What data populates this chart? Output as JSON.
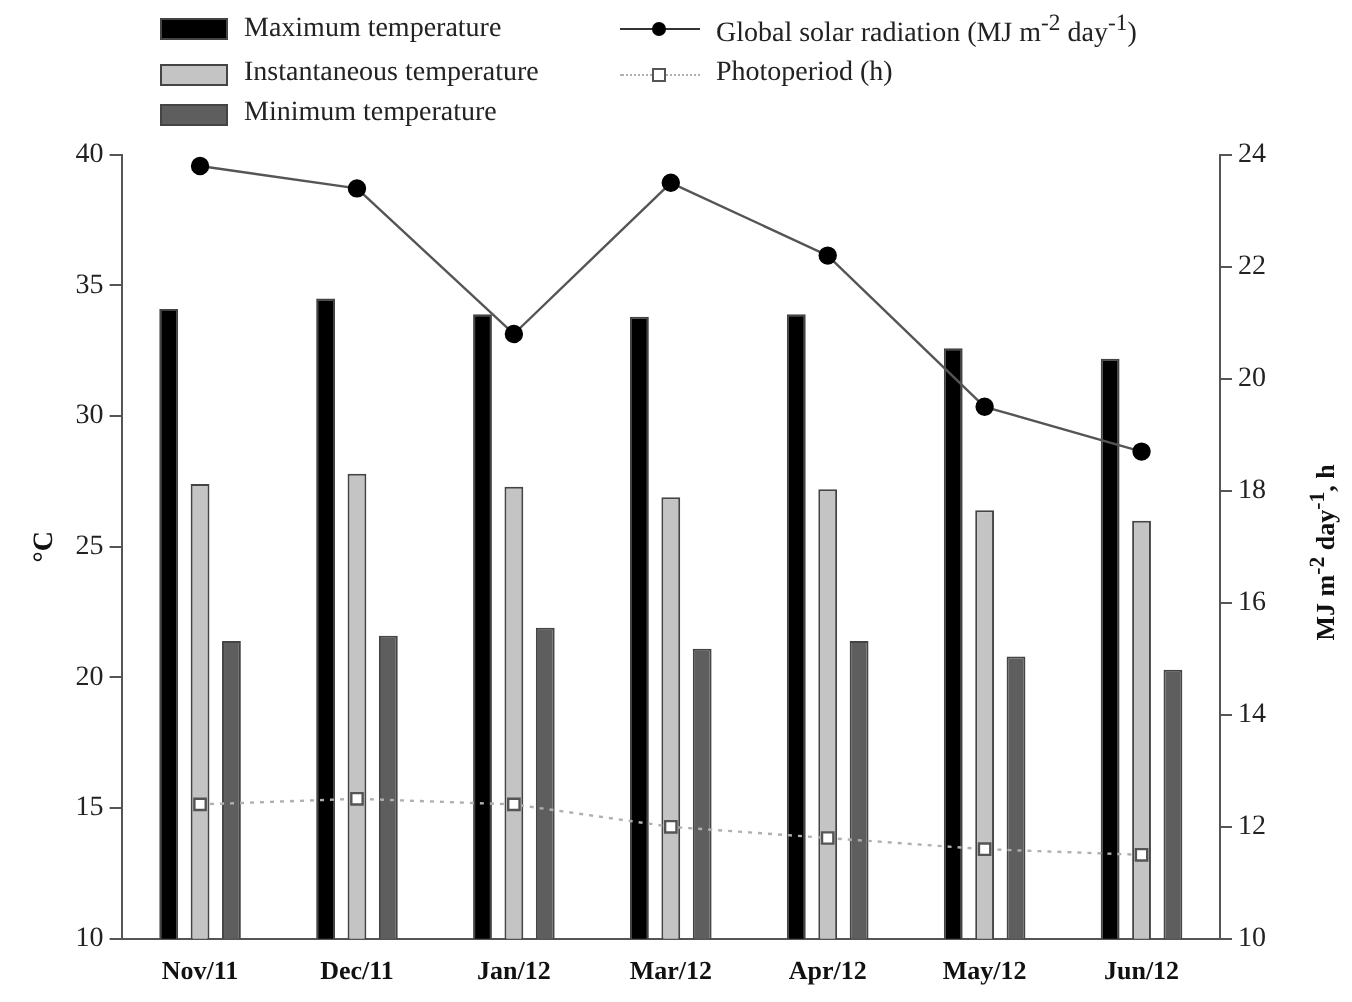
{
  "chart_data": {
    "type": "bar",
    "categories": [
      "Nov/11",
      "Dec/11",
      "Jan/12",
      "Mar/12",
      "Apr/12",
      "May/12",
      "Jun/12"
    ],
    "series": [
      {
        "name": "Maximum temperature",
        "color": "#000000",
        "values": [
          34.1,
          34.5,
          33.9,
          33.8,
          33.9,
          32.6,
          32.2
        ]
      },
      {
        "name": "Instantaneous temperature",
        "color": "#c4c4c4",
        "values": [
          27.4,
          27.8,
          27.3,
          26.9,
          27.2,
          26.4,
          26.0
        ]
      },
      {
        "name": "Minimum temperature",
        "color": "#5e5e5e",
        "values": [
          21.4,
          21.6,
          21.9,
          21.1,
          21.4,
          20.8,
          20.3
        ]
      },
      {
        "name": "Global solar radiation (MJ m$^{-2}$ day$^{-1}$)",
        "type": "line",
        "axis": "y2",
        "color": "#000000",
        "marker": "circle",
        "line_style": "solid",
        "values": [
          23.8,
          23.4,
          20.8,
          23.5,
          22.2,
          19.5,
          18.7
        ]
      },
      {
        "name": "Photoperiod (h)",
        "type": "line",
        "axis": "y2",
        "color": "#b0b0b0",
        "marker": "square",
        "line_style": "dotted",
        "values": [
          12.4,
          12.5,
          12.4,
          12.0,
          11.8,
          11.6,
          11.5
        ]
      }
    ],
    "ylabel": "°C",
    "y2label": "MJ m$^{-2}$ day$^{-1}$, h",
    "ylim": [
      10,
      40
    ],
    "yticks": [
      10,
      15,
      20,
      25,
      30,
      35,
      40
    ],
    "y2lim": [
      10,
      24
    ],
    "y2ticks": [
      10,
      12,
      14,
      16,
      18,
      20,
      22,
      24
    ],
    "grid": false,
    "legend": "top"
  }
}
